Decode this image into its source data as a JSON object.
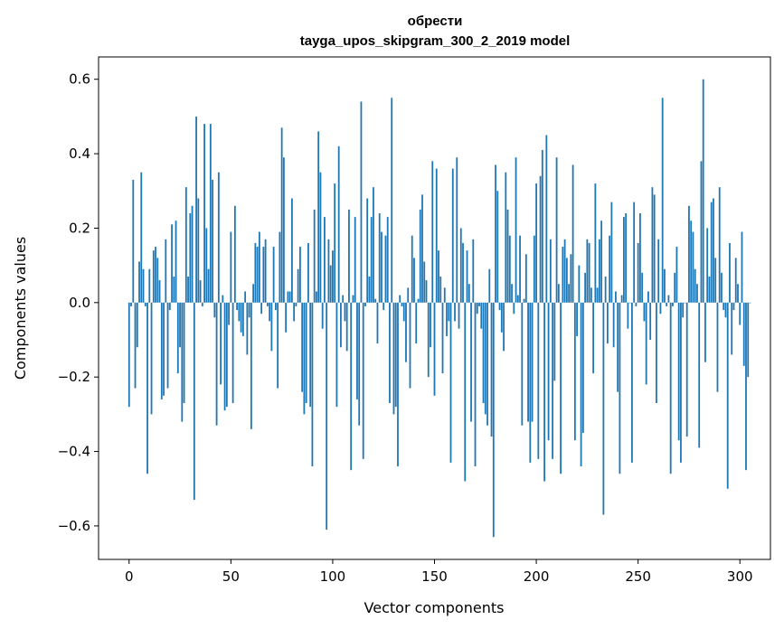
{
  "chart_data": {
    "type": "bar",
    "title": "обрести",
    "subtitle": "tayga_upos_skipgram_300_2_2019 model",
    "xlabel": "Vector components",
    "ylabel": "Components values",
    "xlim": [
      -15,
      315
    ],
    "ylim": [
      -0.69,
      0.66
    ],
    "xticks": [
      0,
      50,
      100,
      150,
      200,
      250,
      300
    ],
    "yticks": [
      -0.6,
      -0.4,
      -0.2,
      0.0,
      0.2,
      0.4,
      0.6
    ],
    "ytick_labels": [
      "−0.6",
      "−0.4",
      "−0.2",
      "0.0",
      "0.2",
      "0.4",
      "0.6"
    ],
    "bar_color": "#1f77b4",
    "grid": false,
    "values": [
      -0.28,
      -0.01,
      0.33,
      -0.23,
      -0.12,
      0.11,
      0.35,
      0.09,
      -0.01,
      -0.46,
      0.09,
      -0.3,
      0.14,
      0.15,
      0.12,
      0.06,
      -0.26,
      -0.25,
      0.17,
      -0.23,
      -0.02,
      0.21,
      0.07,
      0.22,
      -0.19,
      -0.12,
      -0.32,
      -0.27,
      0.31,
      0.07,
      0.24,
      0.26,
      -0.53,
      0.5,
      0.28,
      0.06,
      -0.01,
      0.48,
      0.2,
      0.09,
      0.48,
      0.33,
      -0.04,
      -0.33,
      0.35,
      -0.22,
      0.02,
      -0.29,
      -0.28,
      -0.06,
      0.19,
      -0.27,
      0.26,
      -0.02,
      -0.05,
      -0.08,
      -0.09,
      0.03,
      -0.14,
      -0.04,
      -0.34,
      0.05,
      0.16,
      0.15,
      0.19,
      -0.03,
      0.15,
      0.17,
      -0.01,
      -0.05,
      -0.13,
      0.15,
      -0.02,
      -0.23,
      0.19,
      0.47,
      0.39,
      -0.08,
      0.03,
      0.03,
      0.28,
      -0.05,
      -0.01,
      0.09,
      0.15,
      -0.24,
      -0.3,
      -0.27,
      0.16,
      -0.28,
      -0.44,
      0.25,
      0.03,
      0.46,
      0.35,
      -0.07,
      0.23,
      -0.61,
      0.17,
      0.1,
      0.14,
      0.32,
      -0.28,
      0.42,
      -0.12,
      0.02,
      -0.05,
      -0.13,
      0.25,
      -0.45,
      0.02,
      0.23,
      -0.26,
      -0.33,
      0.54,
      -0.42,
      -0.01,
      0.28,
      0.07,
      0.23,
      0.31,
      0.01,
      -0.11,
      0.24,
      0.19,
      -0.02,
      0.18,
      0.23,
      -0.27,
      0.55,
      -0.3,
      -0.28,
      -0.44,
      0.02,
      -0.01,
      -0.05,
      -0.16,
      0.04,
      -0.23,
      0.18,
      0.12,
      -0.11,
      0.01,
      0.25,
      0.29,
      0.11,
      0.06,
      -0.2,
      -0.12,
      0.38,
      -0.25,
      0.36,
      0.14,
      0.07,
      -0.19,
      0.04,
      -0.09,
      -0.05,
      -0.43,
      0.36,
      -0.05,
      0.39,
      -0.07,
      0.2,
      0.16,
      -0.48,
      0.14,
      0.05,
      -0.32,
      0.17,
      -0.44,
      -0.03,
      -0.01,
      -0.07,
      -0.27,
      -0.3,
      -0.33,
      0.09,
      -0.36,
      -0.63,
      0.37,
      0.3,
      -0.02,
      -0.08,
      -0.13,
      0.35,
      0.25,
      0.18,
      0.05,
      -0.03,
      0.39,
      0.02,
      0.18,
      -0.33,
      0.01,
      0.13,
      -0.32,
      -0.43,
      -0.32,
      0.18,
      0.32,
      -0.42,
      0.34,
      0.41,
      -0.48,
      0.45,
      -0.37,
      0.17,
      -0.42,
      -0.21,
      0.39,
      0.05,
      -0.46,
      0.15,
      0.17,
      0.12,
      0.05,
      0.13,
      0.37,
      -0.37,
      -0.09,
      0.1,
      -0.44,
      -0.35,
      0.08,
      0.17,
      0.16,
      0.04,
      -0.19,
      0.32,
      0.04,
      0.17,
      0.22,
      -0.57,
      0.07,
      -0.11,
      0.18,
      0.27,
      -0.12,
      0.03,
      -0.24,
      -0.46,
      0.02,
      0.23,
      0.24,
      -0.07,
      0.0,
      -0.43,
      0.27,
      -0.01,
      0.16,
      0.24,
      0.08,
      -0.05,
      -0.22,
      0.03,
      -0.1,
      0.31,
      0.29,
      -0.27,
      0.17,
      -0.03,
      0.55,
      0.09,
      -0.01,
      0.02,
      -0.46,
      -0.01,
      0.08,
      0.15,
      -0.37,
      -0.43,
      -0.04,
      0.0,
      -0.36,
      0.26,
      0.22,
      0.19,
      0.09,
      0.05,
      -0.39,
      0.38,
      0.6,
      -0.16,
      0.2,
      0.07,
      0.27,
      0.28,
      0.12,
      -0.24,
      0.31,
      0.08,
      -0.02,
      -0.04,
      -0.5,
      0.16,
      -0.14,
      -0.02,
      0.12,
      0.05,
      -0.06,
      0.19,
      -0.17,
      -0.45,
      -0.2,
      0.0
    ]
  }
}
